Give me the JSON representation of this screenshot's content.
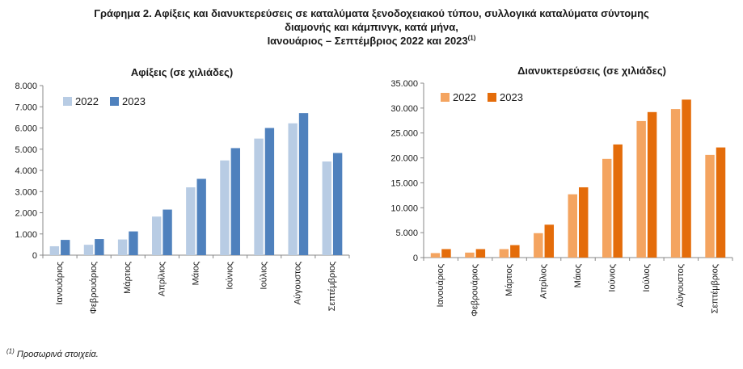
{
  "figure": {
    "title_line1": "Γράφημα 2. Αφίξεις και διανυκτερεύσεις σε καταλύματα ξενοδοχειακού τύπου, συλλογικά καταλύματα σύντομης",
    "title_line2": "διαμονής και κάμπινγκ, κατά μήνα,",
    "title_line3": "Ιανουάριος – Σεπτέμβριος 2022 και 2023",
    "title_sup": "(1)",
    "footnote_marker": "(1)",
    "footnote_text": "Προσωρινά στοιχεία."
  },
  "chart_data": [
    {
      "type": "bar",
      "title": "Αφίξεις (σε χιλιάδες)",
      "categories": [
        "Ιανουάριος",
        "Φεβρουάριος",
        "Μάρτιος",
        "Απρίλιος",
        "Μάιος",
        "Ιούνιος",
        "Ιούλιος",
        "Αύγουστος",
        "Σεπτέμβριος"
      ],
      "series": [
        {
          "name": "2022",
          "color": "#b8cce4",
          "values": [
            420,
            490,
            740,
            1820,
            3200,
            4470,
            5500,
            6220,
            4420
          ]
        },
        {
          "name": "2023",
          "color": "#4f81bd",
          "values": [
            720,
            760,
            1120,
            2150,
            3600,
            5050,
            6000,
            6700,
            4820
          ]
        }
      ],
      "ylim": [
        0,
        8000
      ],
      "yticks": [
        "0",
        "1.000",
        "2.000",
        "3.000",
        "4.000",
        "5.000",
        "6.000",
        "7.000",
        "8.000"
      ],
      "xlabel": "",
      "ylabel": "",
      "grid": false,
      "legend": "top-left"
    },
    {
      "type": "bar",
      "title": "Διανυκτερεύσεις (σε χιλιάδες)",
      "categories": [
        "Ιανουάριος",
        "Φεβρουάριος",
        "Μάρτιος",
        "Απρίλιος",
        "Μάιος",
        "Ιούνιος",
        "Ιούλιος",
        "Αύγουστος",
        "Σεπτέμβριος"
      ],
      "series": [
        {
          "name": "2022",
          "color": "#f4a460",
          "values": [
            900,
            1000,
            1700,
            4900,
            12700,
            19800,
            27400,
            29800,
            20600
          ]
        },
        {
          "name": "2023",
          "color": "#e46c0a",
          "values": [
            1700,
            1700,
            2500,
            6600,
            14100,
            22700,
            29200,
            31700,
            22100
          ]
        }
      ],
      "ylim": [
        0,
        35000
      ],
      "yticks": [
        "0",
        "5.000",
        "10.000",
        "15.000",
        "20.000",
        "25.000",
        "30.000",
        "35.000"
      ],
      "xlabel": "",
      "ylabel": "",
      "grid": false,
      "legend": "top-left"
    }
  ]
}
